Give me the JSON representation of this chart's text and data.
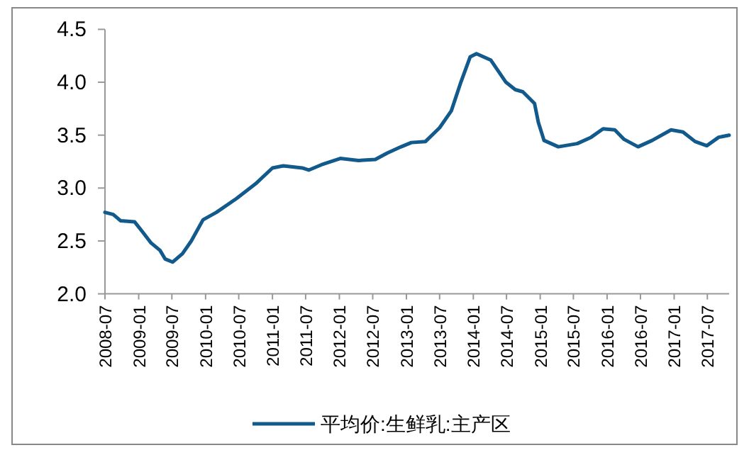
{
  "chart_data": {
    "type": "line",
    "legend": "bottom",
    "xlim": [
      "2008-07-01",
      "2017-10-28"
    ],
    "xticks": [
      "2008-07",
      "2009-01",
      "2009-07",
      "2010-01",
      "2010-07",
      "2011-01",
      "2011-07",
      "2012-01",
      "2012-07",
      "2013-01",
      "2013-07",
      "2014-01",
      "2014-07",
      "2015-01",
      "2015-07",
      "2016-01",
      "2016-07",
      "2017-01",
      "2017-07"
    ],
    "ylim": [
      2.0,
      4.5
    ],
    "yticks": [
      {
        "value": 2.0,
        "label": "2.0"
      },
      {
        "value": 2.5,
        "label": "2.5"
      },
      {
        "value": 3.0,
        "label": "3.0"
      },
      {
        "value": 3.5,
        "label": "3.5"
      },
      {
        "value": 4.0,
        "label": "4.0"
      },
      {
        "value": 4.5,
        "label": "4.5"
      }
    ],
    "x": [
      "2008-07-01",
      "2008-08-15",
      "2008-09-25",
      "2008-12-10",
      "2009-01-20",
      "2009-03-10",
      "2009-04-28",
      "2009-05-25",
      "2009-07-05",
      "2009-08-28",
      "2009-10-15",
      "2009-12-18",
      "2010-03-01",
      "2010-06-18",
      "2010-10-01",
      "2011-01-01",
      "2011-03-01",
      "2011-06-12",
      "2011-07-18",
      "2011-09-25",
      "2012-01-06",
      "2012-04-15",
      "2012-07-15",
      "2012-09-18",
      "2012-12-03",
      "2013-01-28",
      "2013-04-15",
      "2013-07-01",
      "2013-09-03",
      "2013-10-25",
      "2013-12-15",
      "2014-01-18",
      "2014-04-06",
      "2014-06-28",
      "2014-08-18",
      "2014-09-28",
      "2014-12-01",
      "2014-12-22",
      "2015-01-22",
      "2015-04-10",
      "2015-07-22",
      "2015-10-06",
      "2015-12-10",
      "2016-02-12",
      "2016-04-03",
      "2016-06-18",
      "2016-09-03",
      "2016-12-15",
      "2017-02-18",
      "2017-04-25",
      "2017-06-28",
      "2017-09-01",
      "2017-10-28"
    ],
    "series": [
      {
        "name": "平均价:生鲜乳:主产区",
        "color": "#125a8c",
        "values": [
          2.77,
          2.75,
          2.69,
          2.68,
          2.59,
          2.48,
          2.41,
          2.33,
          2.3,
          2.38,
          2.5,
          2.7,
          2.77,
          2.9,
          3.04,
          3.19,
          3.21,
          3.19,
          3.17,
          3.22,
          3.28,
          3.26,
          3.27,
          3.33,
          3.39,
          3.43,
          3.44,
          3.57,
          3.73,
          4.0,
          4.24,
          4.27,
          4.21,
          4.0,
          3.93,
          3.91,
          3.8,
          3.62,
          3.45,
          3.39,
          3.42,
          3.48,
          3.56,
          3.55,
          3.46,
          3.39,
          3.45,
          3.55,
          3.53,
          3.44,
          3.4,
          3.48,
          3.5
        ]
      }
    ]
  }
}
